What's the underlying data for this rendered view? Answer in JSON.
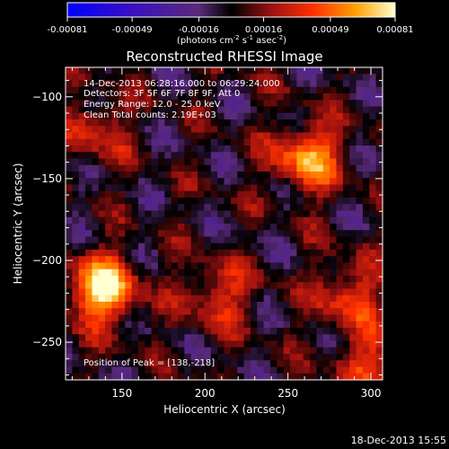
{
  "colorbar": {
    "ticks": [
      "-0.00081",
      "-0.00049",
      "-0.00016",
      "0.00016",
      "0.00049",
      "0.00081"
    ],
    "unit_main": "(photons cm",
    "unit_sup1": "-2",
    "unit_mid": " s",
    "unit_sup2": "-1",
    "unit_end": " asec",
    "unit_sup3": "-2",
    "unit_close": ")",
    "range": [
      -0.00081,
      0.00081
    ]
  },
  "info": {
    "time": "14-Dec-2013 06:28:16.000 to 06:29:24.000",
    "detectors": "Detectors: 3F 5F 6F 7F 8F 9F, Att 0",
    "energy": "Energy Range: 12.0 - 25.0 keV",
    "clean": "Clean    Total counts: 2.19E+03",
    "peak": "Position of Peak = [138,-218]"
  },
  "footer": {
    "date": "18-Dec-2013 15:55"
  },
  "chart_data": {
    "type": "heatmap",
    "title": "Reconstructed RHESSI Image",
    "xlabel": "Heliocentric X (arcsec)",
    "ylabel": "Heliocentric Y (arcsec)",
    "xlim": [
      116,
      307
    ],
    "ylim": [
      -273,
      -82
    ],
    "xticks": [
      150,
      200,
      250,
      300
    ],
    "yticks": [
      -100,
      -150,
      -200,
      -250
    ],
    "peak": {
      "x": 138,
      "y": -218
    },
    "sources": [
      {
        "x": 138,
        "y": -218,
        "value": 0.00081
      },
      {
        "x": 262,
        "y": -137,
        "value": 0.0006
      },
      {
        "x": 208,
        "y": -221,
        "value": 0.00035
      },
      {
        "x": 287,
        "y": -221,
        "value": 0.0004
      },
      {
        "x": 301,
        "y": -262,
        "value": 0.00035
      },
      {
        "x": 134,
        "y": -120,
        "value": 0.0003
      }
    ]
  }
}
